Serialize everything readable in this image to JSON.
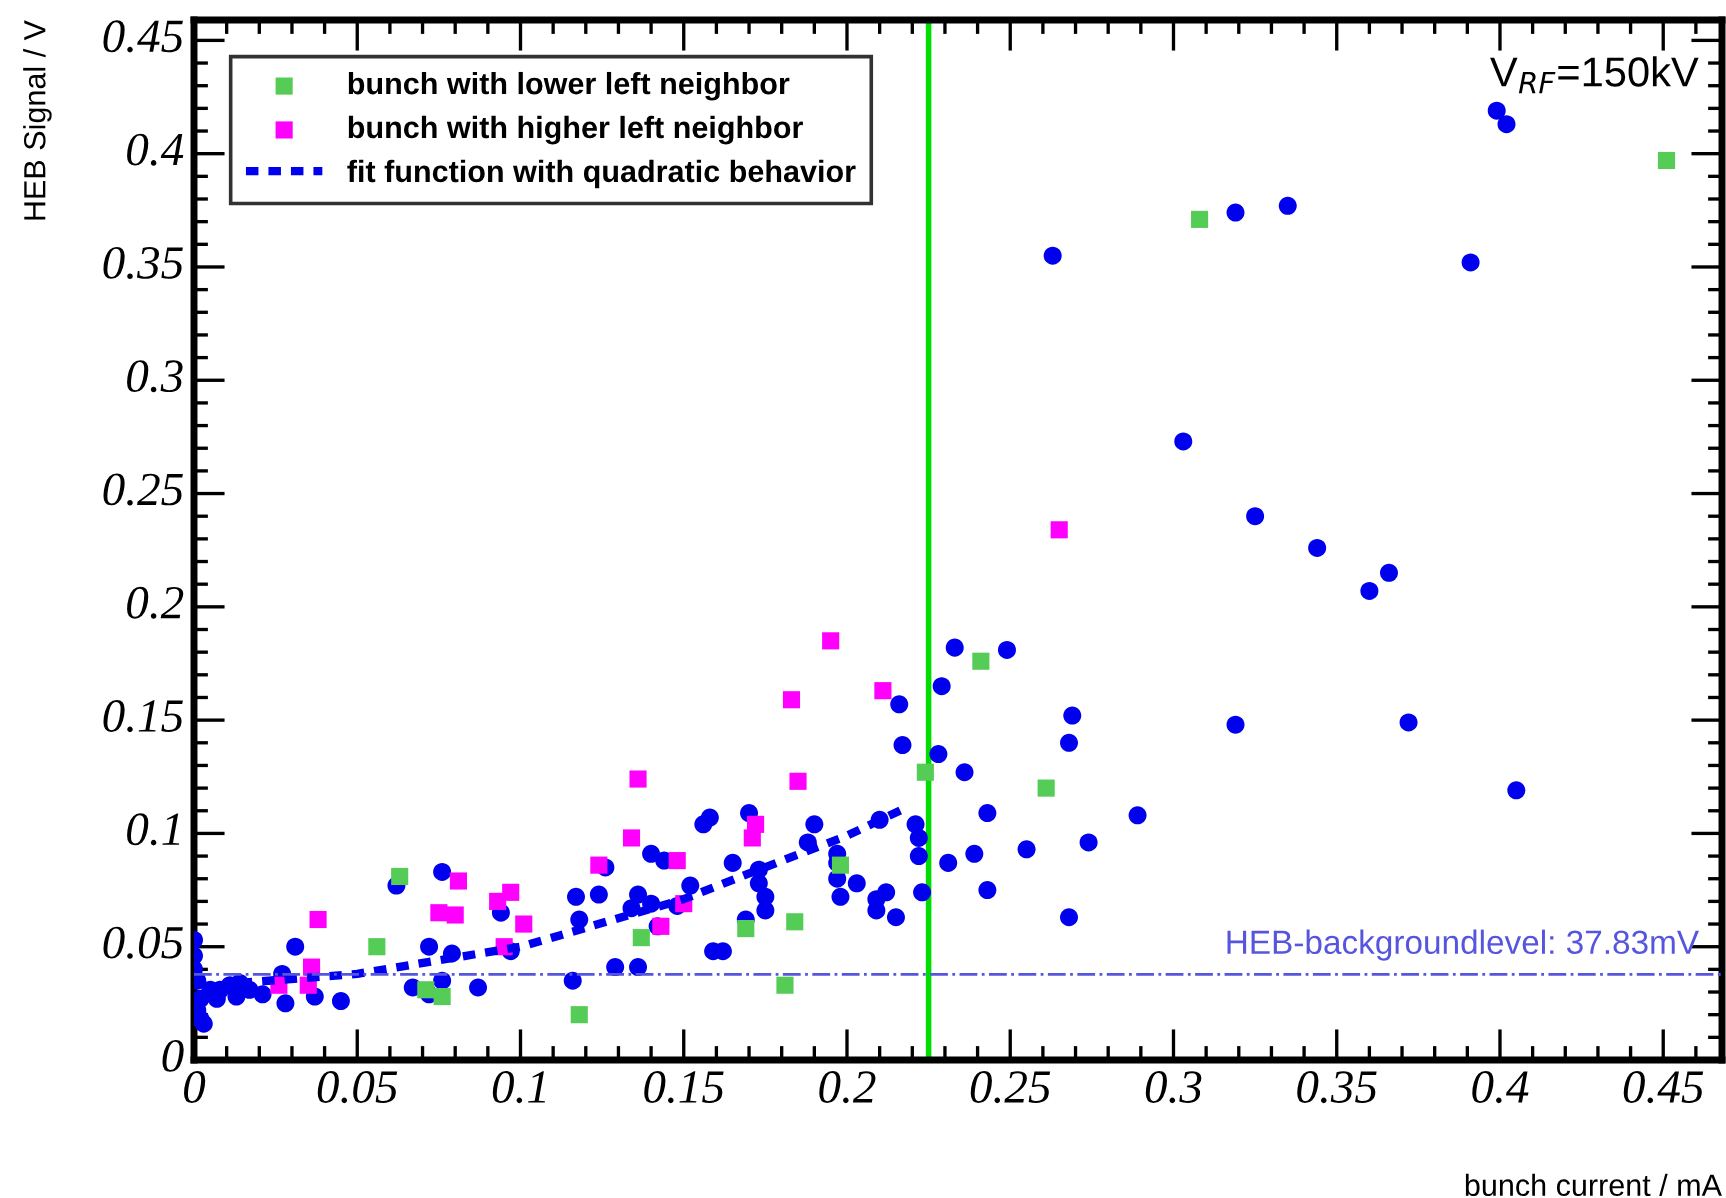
{
  "chart_data": {
    "type": "scatter",
    "xlabel": "bunch current / mA",
    "ylabel": "HEB Signal / V",
    "annotations": [
      "V$_{RF}$=150kV"
    ],
    "xlim": [
      0,
      0.468
    ],
    "ylim": [
      0,
      0.459
    ],
    "xticks": [
      0,
      0.05,
      0.1,
      0.15,
      0.2,
      0.25,
      0.3,
      0.35,
      0.4,
      0.45
    ],
    "yticks": [
      0,
      0.05,
      0.1,
      0.15,
      0.2,
      0.25,
      0.3,
      0.35,
      0.4,
      0.45
    ],
    "grid": false,
    "legend": "top left",
    "ref_lines": [
      {
        "axis": "x",
        "value": 0.225,
        "color": "#00dd00",
        "line_style": "solid"
      },
      {
        "axis": "y",
        "value": 0.03783,
        "label": "HEB-backgroundlevel: 37.83mV",
        "color": "#5555dd",
        "line_style": "dashdot"
      }
    ],
    "series": [
      {
        "marker": "circle",
        "color": "#0000ee",
        "x": [
          0,
          0,
          0,
          0.001,
          0.002,
          0.001,
          0.002,
          0.003,
          0.005,
          0.008,
          0.011,
          0.014,
          0.017,
          0.021,
          0.007,
          0.013,
          0.027,
          0.028,
          0.031,
          0.037,
          0.045,
          0.062,
          0.076,
          0.072,
          0.067,
          0.072,
          0.076,
          0.079,
          0.087,
          0.097,
          0.094,
          0.116,
          0.117,
          0.118,
          0.129,
          0.136,
          0.124,
          0.134,
          0.136,
          0.14,
          0.14,
          0.144,
          0.126,
          0.152,
          0.148,
          0.142,
          0.159,
          0.162,
          0.156,
          0.158,
          0.165,
          0.17,
          0.173,
          0.173,
          0.175,
          0.175,
          0.169,
          0.19,
          0.188,
          0.197,
          0.197,
          0.197,
          0.198,
          0.203,
          0.209,
          0.209,
          0.212,
          0.215,
          0.21,
          0.216,
          0.217,
          0.221,
          0.222,
          0.222,
          0.223,
          0.228,
          0.229,
          0.233,
          0.249,
          0.236,
          0.231,
          0.239,
          0.243,
          0.243,
          0.255,
          0.268,
          0.269,
          0.274,
          0.268,
          0.263,
          0.319,
          0.335,
          0.391,
          0.399,
          0.402,
          0.303,
          0.325,
          0.344,
          0.36,
          0.366,
          0.319,
          0.372,
          0.405,
          0.289
        ],
        "values": [
          0.053,
          0.046,
          0.04,
          0.035,
          0.027,
          0.022,
          0.018,
          0.016,
          0.031,
          0.031,
          0.033,
          0.034,
          0.031,
          0.029,
          0.027,
          0.028,
          0.038,
          0.025,
          0.05,
          0.028,
          0.026,
          0.077,
          0.083,
          0.05,
          0.032,
          0.029,
          0.035,
          0.047,
          0.032,
          0.048,
          0.065,
          0.035,
          0.072,
          0.062,
          0.041,
          0.041,
          0.073,
          0.067,
          0.073,
          0.069,
          0.091,
          0.088,
          0.085,
          0.077,
          0.068,
          0.059,
          0.048,
          0.048,
          0.104,
          0.107,
          0.087,
          0.109,
          0.084,
          0.078,
          0.072,
          0.066,
          0.062,
          0.104,
          0.096,
          0.091,
          0.087,
          0.08,
          0.072,
          0.078,
          0.071,
          0.066,
          0.074,
          0.063,
          0.106,
          0.157,
          0.139,
          0.104,
          0.098,
          0.09,
          0.074,
          0.135,
          0.165,
          0.182,
          0.181,
          0.127,
          0.087,
          0.091,
          0.109,
          0.075,
          0.093,
          0.14,
          0.152,
          0.096,
          0.063,
          0.355,
          0.374,
          0.377,
          0.352,
          0.419,
          0.413,
          0.273,
          0.24,
          0.226,
          0.207,
          0.215,
          0.148,
          0.149,
          0.119,
          0.108
        ]
      },
      {
        "marker": "square",
        "name": "bunch with lower left neighbor",
        "color": "#55cc55",
        "x": [
          0.056,
          0.063,
          0.071,
          0.076,
          0.118,
          0.137,
          0.169,
          0.184,
          0.181,
          0.198,
          0.224,
          0.241,
          0.261,
          0.308,
          0.451
        ],
        "values": [
          0.05,
          0.081,
          0.031,
          0.028,
          0.02,
          0.054,
          0.058,
          0.061,
          0.033,
          0.086,
          0.127,
          0.176,
          0.12,
          0.371,
          0.397
        ]
      },
      {
        "marker": "square",
        "name": "bunch with higher left neighbor",
        "color": "#ff00ff",
        "x": [
          0.038,
          0.036,
          0.026,
          0.035,
          0.075,
          0.081,
          0.08,
          0.093,
          0.097,
          0.101,
          0.095,
          0.124,
          0.134,
          0.136,
          0.148,
          0.15,
          0.143,
          0.171,
          0.172,
          0.183,
          0.185,
          0.195,
          0.211,
          0.265
        ],
        "values": [
          0.062,
          0.041,
          0.033,
          0.033,
          0.065,
          0.079,
          0.064,
          0.07,
          0.074,
          0.06,
          0.05,
          0.086,
          0.098,
          0.124,
          0.088,
          0.069,
          0.059,
          0.098,
          0.104,
          0.159,
          0.123,
          0.185,
          0.163,
          0.234
        ]
      },
      {
        "type": "line",
        "name": "fit function with quadratic behavior",
        "color": "#0000ee",
        "line_style": "dotted",
        "marker": "none",
        "x": [
          0.014,
          0.05,
          0.1,
          0.112,
          0.15,
          0.173,
          0.2,
          0.219
        ],
        "values": [
          0.034,
          0.038,
          0.05,
          0.055,
          0.071,
          0.084,
          0.099,
          0.112
        ]
      }
    ]
  }
}
